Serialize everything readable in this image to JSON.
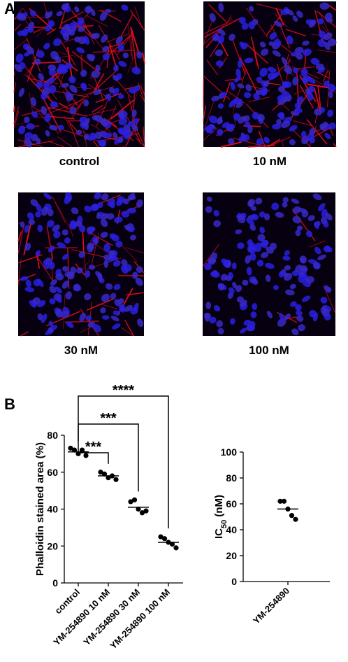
{
  "panel_a": {
    "label": "A",
    "images": [
      "control",
      "10 nM",
      "30 nM",
      "100 nM"
    ]
  },
  "panel_b_label": "B",
  "chart_data": [
    {
      "type": "dot",
      "y_label": "Phalloidin stained area (%)",
      "categories": [
        "control",
        "YM-254890 10 nM",
        "YM-254890 30 nM",
        "YM-254890 100 nM"
      ],
      "points": [
        [
          73,
          72,
          70,
          72,
          69
        ],
        [
          60,
          59,
          57,
          58,
          56
        ],
        [
          44,
          45,
          40,
          38,
          39
        ],
        [
          25,
          24,
          22,
          21,
          19
        ]
      ],
      "means": [
        71,
        58,
        41,
        22
      ],
      "ylim": [
        0,
        80
      ],
      "yticks": [
        0,
        20,
        40,
        60,
        80
      ],
      "color": "#000000",
      "significance": [
        {
          "from": 0,
          "to": 1,
          "label": "***"
        },
        {
          "from": 0,
          "to": 2,
          "label": "***"
        },
        {
          "from": 0,
          "to": 3,
          "label": "****"
        }
      ]
    },
    {
      "type": "dot",
      "y_label": [
        "IC",
        "50",
        " (nM)"
      ],
      "categories": [
        "YM-254890"
      ],
      "points": [
        [
          62,
          62,
          56,
          51,
          48
        ]
      ],
      "means": [
        56
      ],
      "ylim": [
        0,
        100
      ],
      "yticks": [
        0,
        20,
        40,
        60,
        80,
        100
      ],
      "color": "#000000"
    }
  ]
}
